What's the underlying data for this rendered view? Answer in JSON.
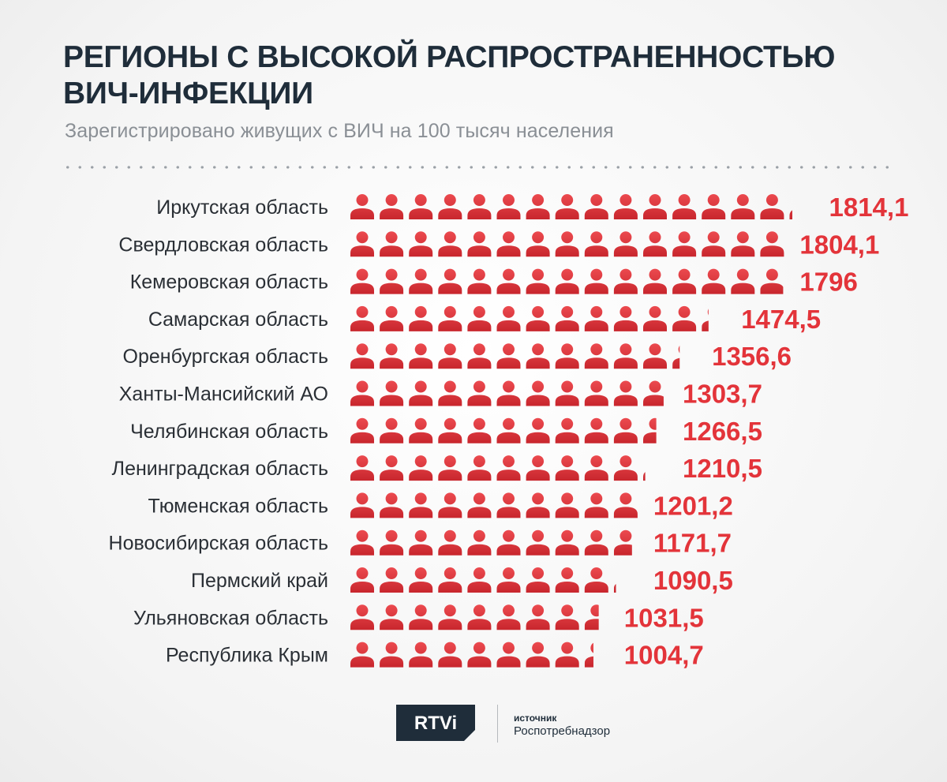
{
  "header": {
    "title": "РЕГИОНЫ С ВЫСОКОЙ РАСПРОСТРАНЕННОСТЬЮ ВИЧ-ИНФЕКЦИИ",
    "subtitle": "Зарегистрировано живущих с ВИЧ на 100 тысяч населения"
  },
  "chart_data": {
    "type": "bar",
    "title": "РЕГИОНЫ С ВЫСОКОЙ РАСПРОСТРАНЕННОСТЬЮ ВИЧ-ИНФЕКЦИИ",
    "subtitle": "Зарегистрировано живущих с ВИЧ на 100 тысяч населения",
    "orientation": "horizontal",
    "mark": "person-icons",
    "units_per_icon": 120,
    "categories": [
      "Иркутская область",
      "Свердловская область",
      "Кемеровская область",
      "Самарская область",
      "Оренбургская область",
      "Ханты-Мансийский АО",
      "Челябинская область",
      "Ленинградская область",
      "Тюменская область",
      "Новосибирская область",
      "Пермский край",
      "Ульяновская область",
      "Республика Крым"
    ],
    "values": [
      1814.1,
      1804.1,
      1796,
      1474.5,
      1356.6,
      1303.7,
      1266.5,
      1210.5,
      1201.2,
      1171.7,
      1090.5,
      1031.5,
      1004.7
    ],
    "value_labels": [
      "1814,1",
      "1804,1",
      "1796",
      "1474,5",
      "1356,6",
      "1303,7",
      "1266,5",
      "1210,5",
      "1201,2",
      "1171,7",
      "1090,5",
      "1031,5",
      "1004,7"
    ],
    "color": "#e3343a"
  },
  "footer": {
    "logo_text": "RTVi",
    "source_caption": "источник",
    "source_name": "Роспотребнадзор"
  }
}
